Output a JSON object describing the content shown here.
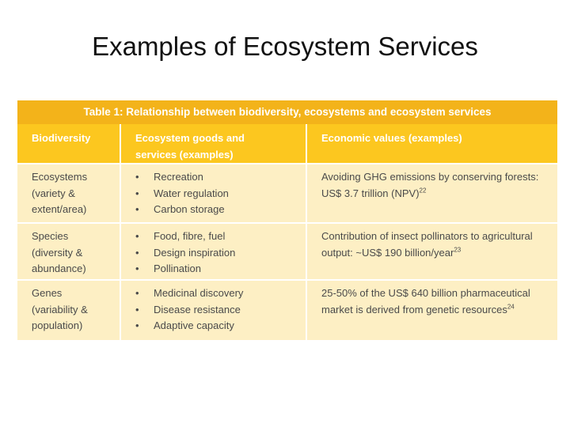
{
  "slide": {
    "title": "Examples of Ecosystem Services"
  },
  "table": {
    "caption": "Table 1: Relationship between biodiversity, ecosystems and ecosystem services",
    "headers": [
      "Biodiversity",
      "Ecosystem goods and services (examples)",
      "Economic values (examples)"
    ],
    "rows": [
      {
        "biodiversity_lines": [
          "Ecosystems",
          "(variety &",
          "extent/area)"
        ],
        "services": [
          "Recreation",
          "Water regulation",
          "Carbon storage"
        ],
        "value_lines": [
          "Avoiding GHG emissions by conserving forests:",
          "US$ 3.7 trillion (NPV)"
        ],
        "value_ref": "22"
      },
      {
        "biodiversity_lines": [
          "Species",
          "(diversity &",
          "abundance)"
        ],
        "services": [
          "Food, fibre, fuel",
          "Design inspiration",
          "Pollination"
        ],
        "value_lines": [
          "Contribution of insect pollinators to agricultural",
          "output: ~US$ 190 billion/year"
        ],
        "value_ref": "23"
      },
      {
        "biodiversity_lines": [
          "Genes",
          "(variability &",
          "population)"
        ],
        "services": [
          "Medicinal discovery",
          "Disease resistance",
          "Adaptive capacity"
        ],
        "value_lines": [
          "25-50% of the US$ 640 billion pharmaceutical",
          "market is derived from genetic resources"
        ],
        "value_ref": "24"
      }
    ],
    "bullet_char": "•"
  }
}
